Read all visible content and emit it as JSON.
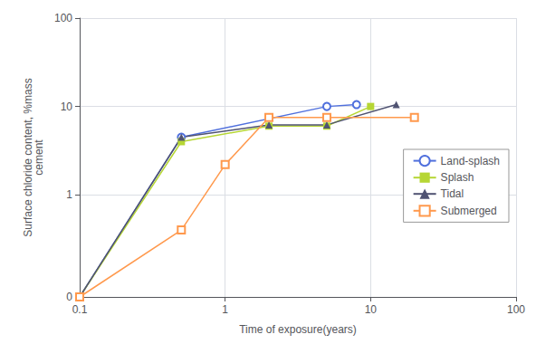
{
  "chart_data": {
    "type": "line",
    "xlabel": "Time of exposure(years)",
    "ylabel": "Surface chloride content, %mass\ncement",
    "log": true,
    "grid": true,
    "legend": "right",
    "xlim": [
      0.1,
      100
    ],
    "ylim": [
      0.07,
      100
    ],
    "xticks": [
      0.1,
      1,
      10,
      100
    ],
    "yticks": [
      {
        "value": 0.07,
        "label": "0"
      },
      1,
      10,
      100
    ],
    "series": [
      {
        "name": "Land-splash",
        "marker": "open-circle",
        "line_style": "solid",
        "x": [
          0.1,
          0.5,
          5.0,
          8.0
        ],
        "values": [
          0.07,
          4.5,
          10.0,
          10.5
        ]
      },
      {
        "name": "Splash",
        "marker": "square",
        "line_style": "solid",
        "x": [
          0.1,
          0.5,
          2.0,
          5.0,
          10.0
        ],
        "values": [
          0.07,
          4.0,
          6.0,
          6.0,
          10.0
        ]
      },
      {
        "name": "Tidal",
        "marker": "triangle",
        "line_style": "solid",
        "x": [
          0.1,
          0.5,
          2.0,
          5.0,
          15.0
        ],
        "values": [
          0.07,
          4.5,
          6.2,
          6.2,
          10.5
        ]
      },
      {
        "name": "Submerged",
        "marker": "open-square",
        "line_style": "solid",
        "x": [
          0.1,
          0.5,
          1.0,
          2.0,
          5.0,
          20.0
        ],
        "values": [
          0.07,
          0.4,
          2.2,
          7.5,
          7.5,
          7.5
        ]
      }
    ]
  }
}
